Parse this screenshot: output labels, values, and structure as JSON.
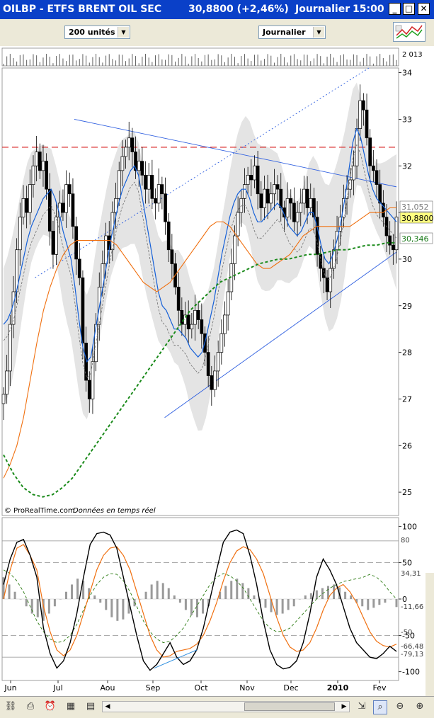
{
  "window": {
    "title": "OILBP - ETFS BRENT OIL SEC",
    "price": "30,8800 (+2,46%)",
    "period": "Journalier",
    "time": "15:00"
  },
  "toolbar": {
    "units_select": "200 unités",
    "period_select": "Journalier"
  },
  "credit": "© ProRealTime.com",
  "credit_note": "Données en temps réel",
  "colors": {
    "titlebar": "#0a40c8",
    "ma_blue": "#1560d8",
    "ma_orange": "#f07010",
    "ma_green": "#1a8a1a",
    "resistance_red": "#d82020",
    "trend_blue": "#3060e0",
    "band_gray": "#e4e4e4"
  },
  "chart_data": [
    {
      "type": "line",
      "name": "price",
      "y_axis_ticks": [
        25,
        26,
        27,
        28,
        29,
        30,
        31,
        32,
        33,
        34
      ],
      "ylim": [
        24.5,
        34.1
      ],
      "x_labels": [
        "Jun",
        "Jul",
        "Aou",
        "Sep",
        "Oct",
        "Nov",
        "Dec",
        "2010",
        "Fev"
      ],
      "volume_label": "2 013",
      "value_labels": {
        "upper": "31,052",
        "last": "30,8800",
        "lower": "30,346"
      },
      "resistance_level": 32.4,
      "close": [
        27.1,
        27.6,
        28.6,
        29.3,
        30.2,
        30.9,
        31.3,
        31.0,
        31.6,
        32.0,
        32.3,
        31.9,
        32.1,
        31.5,
        30.6,
        30.1,
        30.9,
        31.2,
        31.0,
        31.6,
        31.4,
        30.7,
        30.0,
        29.6,
        28.2,
        27.4,
        27.0,
        27.8,
        28.6,
        29.4,
        29.9,
        30.5,
        30.2,
        31.0,
        31.3,
        31.9,
        32.2,
        32.4,
        32.6,
        32.3,
        31.9,
        32.1,
        31.8,
        31.5,
        31.8,
        31.3,
        31.2,
        31.6,
        31.4,
        30.8,
        30.2,
        29.9,
        29.4,
        28.9,
        28.6,
        28.8,
        28.5,
        28.6,
        28.9,
        28.7,
        28.4,
        28.0,
        27.5,
        27.2,
        27.6,
        28.0,
        28.4,
        28.8,
        29.3,
        29.9,
        30.5,
        31.0,
        31.3,
        31.6,
        31.8,
        31.7,
        32.0,
        31.4,
        31.1,
        31.5,
        31.2,
        31.4,
        31.6,
        31.5,
        31.1,
        30.9,
        31.3,
        31.2,
        30.8,
        31.0,
        31.2,
        31.5,
        31.1,
        31.3,
        30.9,
        30.1,
        29.8,
        29.6,
        29.3,
        29.8,
        30.2,
        30.6,
        30.9,
        31.3,
        31.5,
        31.7,
        32.0,
        32.8,
        33.4,
        33.2,
        32.6,
        32.0,
        31.9,
        31.6,
        31.2,
        30.9,
        30.5,
        30.3,
        30.2,
        30.9
      ],
      "ma_fast": [
        28.6,
        28.7,
        28.9,
        29.2,
        29.6,
        30.0,
        30.4,
        30.7,
        30.9,
        31.1,
        31.3,
        31.4,
        31.5,
        31.3,
        31.0,
        30.6,
        30.3,
        30.0,
        29.4,
        28.7,
        28.1,
        27.8,
        27.9,
        28.4,
        28.9,
        29.4,
        29.9,
        30.4,
        30.8,
        31.2,
        31.5,
        31.7,
        31.9,
        32.0,
        31.8,
        31.3,
        30.8,
        30.3,
        29.8,
        29.3,
        29.0,
        28.9,
        28.7,
        28.5,
        28.5,
        28.4,
        28.3,
        28.1,
        28.0,
        27.9,
        28.0,
        28.3,
        28.7,
        29.1,
        29.6,
        30.1,
        30.5,
        30.9,
        31.2,
        31.4,
        31.5,
        31.5,
        31.3,
        31.0,
        30.8,
        30.8,
        30.9,
        31.0,
        31.1,
        31.2,
        31.1,
        30.9,
        30.7,
        30.6,
        30.5,
        30.6,
        30.8,
        31.0,
        31.0,
        30.7,
        30.3,
        30.0,
        29.9,
        30.1,
        30.4,
        30.8,
        31.3,
        31.9,
        32.5,
        32.8,
        32.6,
        32.2,
        31.8,
        31.5,
        31.3,
        31.2,
        31.1,
        31.0,
        30.9,
        30.8
      ],
      "ma_mid": [
        25.3,
        25.6,
        26.0,
        26.6,
        27.4,
        28.2,
        28.9,
        29.4,
        29.8,
        30.1,
        30.3,
        30.4,
        30.4,
        30.4,
        30.4,
        30.4,
        30.4,
        30.3,
        30.1,
        29.9,
        29.7,
        29.5,
        29.4,
        29.3,
        29.4,
        29.5,
        29.7,
        29.9,
        30.1,
        30.3,
        30.5,
        30.7,
        30.8,
        30.8,
        30.7,
        30.5,
        30.3,
        30.1,
        29.9,
        29.8,
        29.8,
        29.9,
        30.0,
        30.1,
        30.3,
        30.5,
        30.6,
        30.7,
        30.7,
        30.7,
        30.7,
        30.7,
        30.7,
        30.8,
        30.9,
        31.0,
        31.0,
        31.0,
        31.1,
        31.1
      ],
      "ma_slow": [
        25.8,
        25.4,
        25.1,
        24.95,
        24.9,
        24.95,
        25.1,
        25.3,
        25.6,
        25.9,
        26.2,
        26.5,
        26.8,
        27.1,
        27.4,
        27.7,
        28.0,
        28.3,
        28.6,
        28.9,
        29.1,
        29.3,
        29.5,
        29.6,
        29.7,
        29.8,
        29.9,
        29.95,
        30.0,
        30.0,
        30.05,
        30.1,
        30.1,
        30.15,
        30.2,
        30.2,
        30.25,
        30.3,
        30.3,
        30.35,
        30.35
      ],
      "trend_lines": [
        {
          "from": [
            0.08,
            29.6
          ],
          "to": [
            0.93,
            34.1
          ],
          "style": "dotted"
        },
        {
          "from": [
            0.18,
            33.0
          ],
          "to": [
            1.0,
            31.55
          ],
          "style": "solid"
        },
        {
          "from": [
            0.41,
            26.6
          ],
          "to": [
            1.0,
            30.15
          ],
          "style": "solid"
        }
      ]
    },
    {
      "type": "line",
      "name": "oscillator",
      "y_axis_ticks": [
        100,
        50,
        0,
        -50,
        -100
      ],
      "ylim": [
        -112,
        112
      ],
      "value_labels": [
        "80",
        "34,31",
        "-11,66",
        "-50",
        "-66,48",
        "-79,13"
      ],
      "stoch": [
        20,
        55,
        78,
        82,
        60,
        30,
        -40,
        -75,
        -95,
        -85,
        -60,
        -20,
        30,
        75,
        90,
        92,
        88,
        70,
        30,
        -10,
        -50,
        -85,
        -98,
        -90,
        -75,
        -60,
        -80,
        -90,
        -85,
        -70,
        -40,
        0,
        40,
        78,
        92,
        95,
        90,
        60,
        20,
        -30,
        -70,
        -90,
        -96,
        -94,
        -85,
        -60,
        -20,
        30,
        55,
        40,
        20,
        -10,
        -40,
        -60,
        -70,
        -80,
        -82,
        -75,
        -65,
        -72
      ],
      "signal": [
        0,
        40,
        70,
        75,
        60,
        40,
        -10,
        -45,
        -70,
        -78,
        -70,
        -50,
        -20,
        10,
        40,
        60,
        70,
        72,
        60,
        40,
        10,
        -20,
        -50,
        -70,
        -80,
        -78,
        -72,
        -70,
        -68,
        -62,
        -50,
        -30,
        -5,
        25,
        50,
        66,
        72,
        68,
        55,
        35,
        5,
        -25,
        -50,
        -66,
        -72,
        -70,
        -60,
        -40,
        -15,
        5,
        15,
        20,
        10,
        -5,
        -25,
        -45,
        -58,
        -64,
        -66,
        -62
      ],
      "slow": [
        40,
        35,
        25,
        10,
        -10,
        -30,
        -45,
        -55,
        -60,
        -58,
        -50,
        -35,
        -15,
        5,
        20,
        30,
        35,
        34,
        25,
        10,
        -10,
        -30,
        -45,
        -55,
        -60,
        -58,
        -50,
        -40,
        -25,
        -10,
        5,
        20,
        30,
        35,
        32,
        25,
        15,
        0,
        -15,
        -30,
        -40,
        -45,
        -44,
        -40,
        -30,
        -20,
        -10,
        0,
        8,
        15,
        20,
        24,
        26,
        28,
        30,
        34,
        30,
        22,
        10,
        0
      ],
      "histogram": [
        30,
        20,
        10,
        0,
        -10,
        -20,
        -25,
        -30,
        -20,
        -10,
        0,
        10,
        20,
        28,
        25,
        15,
        5,
        -5,
        -15,
        -25,
        -30,
        -28,
        -20,
        -10,
        0,
        10,
        20,
        25,
        22,
        15,
        5,
        -5,
        -15,
        -22,
        -25,
        -20,
        -10,
        0,
        10,
        18,
        25,
        28,
        22,
        15,
        5,
        -5,
        -12,
        -18,
        -22,
        -20,
        -15,
        -10,
        0,
        5,
        8,
        12,
        15,
        18,
        20,
        16,
        10,
        5,
        -5,
        -10,
        -15,
        -12,
        -8,
        -5,
        0,
        -11
      ]
    }
  ]
}
